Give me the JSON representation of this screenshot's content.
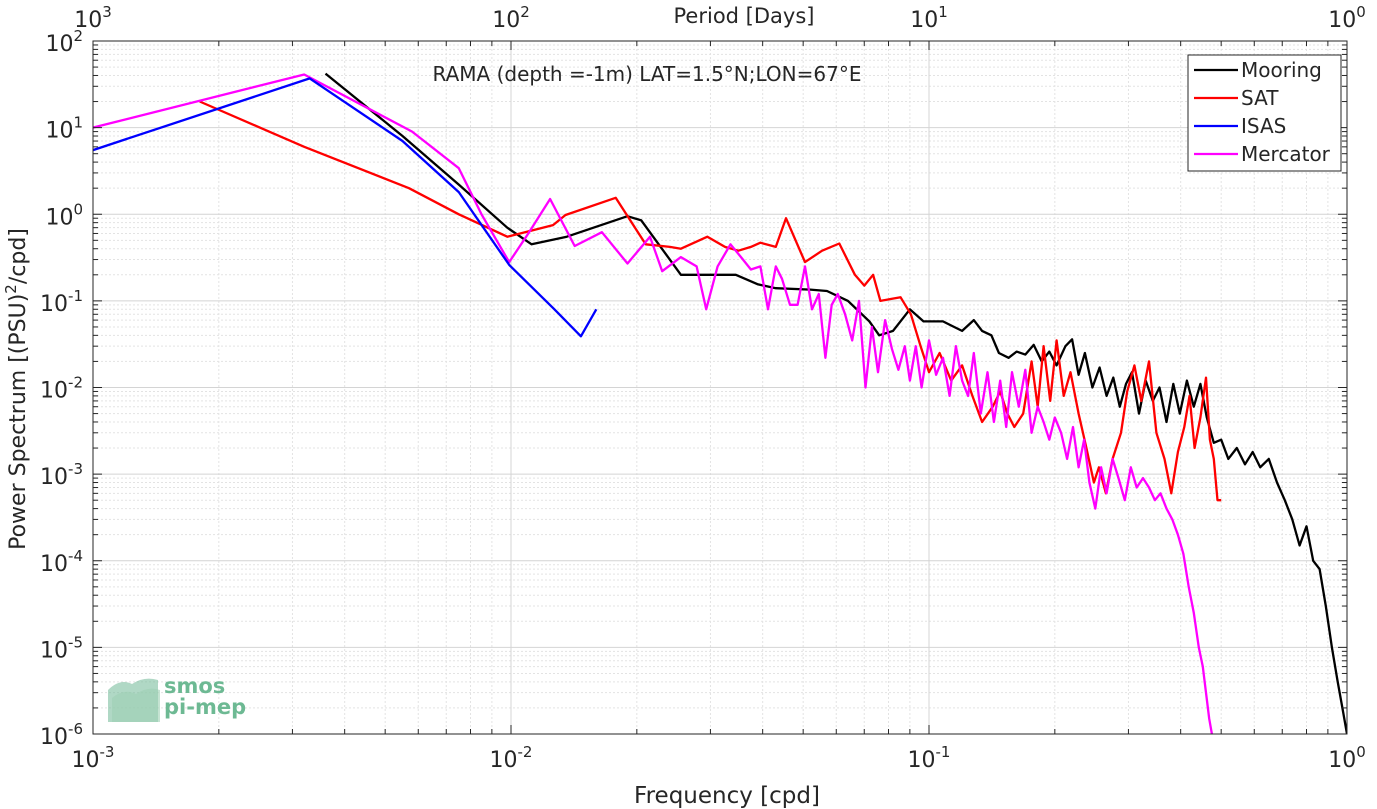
{
  "chart_data": {
    "type": "line",
    "title": "RAMA (depth =-1m) LAT=1.5°N;LON=67°E",
    "xlabel": "Frequency [cpd]",
    "ylabel": "Power Spectrum [(PSU)",
    "ylabel_sup": "2",
    "ylabel_tail": "/cpd]",
    "top_xlabel": "Period [Days]",
    "x_scale": "log",
    "y_scale": "log",
    "xlim": [
      0.001,
      1
    ],
    "ylim": [
      1e-06,
      100
    ],
    "grid": true,
    "legend_position": "top-right",
    "x_ticks": [
      {
        "value": 0.001,
        "base": "10",
        "exp": "-3"
      },
      {
        "value": 0.01,
        "base": "10",
        "exp": "-2"
      },
      {
        "value": 0.1,
        "base": "10",
        "exp": "-1"
      },
      {
        "value": 1,
        "base": "10",
        "exp": "0"
      }
    ],
    "top_ticks": [
      {
        "value": 0.001,
        "base": "10",
        "exp": "3"
      },
      {
        "value": 0.01,
        "base": "10",
        "exp": "2"
      },
      {
        "value": 0.1,
        "base": "10",
        "exp": "1"
      },
      {
        "value": 1,
        "base": "10",
        "exp": "0"
      }
    ],
    "y_ticks": [
      {
        "value": 100,
        "base": "10",
        "exp": "2"
      },
      {
        "value": 10,
        "base": "10",
        "exp": "1"
      },
      {
        "value": 1,
        "base": "10",
        "exp": "0"
      },
      {
        "value": 0.1,
        "base": "10",
        "exp": "-1"
      },
      {
        "value": 0.01,
        "base": "10",
        "exp": "-2"
      },
      {
        "value": 0.001,
        "base": "10",
        "exp": "-3"
      },
      {
        "value": 0.0001,
        "base": "10",
        "exp": "-4"
      },
      {
        "value": 1e-05,
        "base": "10",
        "exp": "-5"
      },
      {
        "value": 1e-06,
        "base": "10",
        "exp": "-6"
      }
    ],
    "series": [
      {
        "name": "Mooring",
        "color": "#000000",
        "points": [
          [
            0.0036,
            42
          ],
          [
            0.0055,
            8
          ],
          [
            0.0075,
            2.2
          ],
          [
            0.0098,
            0.7
          ],
          [
            0.0112,
            0.45
          ],
          [
            0.0136,
            0.55
          ],
          [
            0.019,
            0.95
          ],
          [
            0.0205,
            0.85
          ],
          [
            0.0255,
            0.2
          ],
          [
            0.0345,
            0.2
          ],
          [
            0.039,
            0.155
          ],
          [
            0.043,
            0.14
          ],
          [
            0.052,
            0.135
          ],
          [
            0.057,
            0.13
          ],
          [
            0.064,
            0.1
          ],
          [
            0.072,
            0.058
          ],
          [
            0.076,
            0.04
          ],
          [
            0.082,
            0.045
          ],
          [
            0.09,
            0.08
          ],
          [
            0.097,
            0.058
          ],
          [
            0.108,
            0.058
          ],
          [
            0.113,
            0.052
          ],
          [
            0.12,
            0.045
          ],
          [
            0.128,
            0.06
          ],
          [
            0.134,
            0.045
          ],
          [
            0.141,
            0.04
          ],
          [
            0.147,
            0.025
          ],
          [
            0.155,
            0.022
          ],
          [
            0.162,
            0.026
          ],
          [
            0.17,
            0.024
          ],
          [
            0.178,
            0.031
          ],
          [
            0.186,
            0.02
          ],
          [
            0.194,
            0.026
          ],
          [
            0.202,
            0.018
          ],
          [
            0.212,
            0.03
          ],
          [
            0.22,
            0.036
          ],
          [
            0.228,
            0.014
          ],
          [
            0.236,
            0.025
          ],
          [
            0.246,
            0.01
          ],
          [
            0.256,
            0.017
          ],
          [
            0.266,
            0.008
          ],
          [
            0.276,
            0.013
          ],
          [
            0.286,
            0.006
          ],
          [
            0.296,
            0.011
          ],
          [
            0.306,
            0.015
          ],
          [
            0.318,
            0.005
          ],
          [
            0.33,
            0.012
          ],
          [
            0.343,
            0.007
          ],
          [
            0.356,
            0.01
          ],
          [
            0.37,
            0.004
          ],
          [
            0.384,
            0.011
          ],
          [
            0.398,
            0.005
          ],
          [
            0.414,
            0.012
          ],
          [
            0.43,
            0.006
          ],
          [
            0.446,
            0.011
          ],
          [
            0.462,
            0.0045
          ],
          [
            0.48,
            0.0023
          ],
          [
            0.5,
            0.0025
          ],
          [
            0.52,
            0.0015
          ],
          [
            0.545,
            0.002
          ],
          [
            0.57,
            0.0013
          ],
          [
            0.595,
            0.0018
          ],
          [
            0.62,
            0.0012
          ],
          [
            0.65,
            0.0015
          ],
          [
            0.68,
            0.0008
          ],
          [
            0.71,
            0.0005
          ],
          [
            0.74,
            0.0003
          ],
          [
            0.77,
            0.00015
          ],
          [
            0.8,
            0.00025
          ],
          [
            0.83,
            0.0001
          ],
          [
            0.86,
            8e-05
          ],
          [
            0.89,
            3e-05
          ],
          [
            0.92,
            1e-05
          ],
          [
            0.95,
            4e-06
          ],
          [
            0.975,
            2e-06
          ],
          [
            1.0,
            1e-06
          ]
        ]
      },
      {
        "name": "SAT",
        "color": "#ff0000",
        "points": [
          [
            0.0018,
            20
          ],
          [
            0.0032,
            6
          ],
          [
            0.0057,
            2
          ],
          [
            0.0075,
            1
          ],
          [
            0.0098,
            0.55
          ],
          [
            0.0126,
            0.75
          ],
          [
            0.0135,
            0.98
          ],
          [
            0.0178,
            1.55
          ],
          [
            0.021,
            0.45
          ],
          [
            0.024,
            0.42
          ],
          [
            0.0255,
            0.4
          ],
          [
            0.0295,
            0.55
          ],
          [
            0.0325,
            0.42
          ],
          [
            0.035,
            0.38
          ],
          [
            0.0375,
            0.42
          ],
          [
            0.0395,
            0.47
          ],
          [
            0.043,
            0.42
          ],
          [
            0.0455,
            0.9
          ],
          [
            0.0505,
            0.28
          ],
          [
            0.0555,
            0.38
          ],
          [
            0.061,
            0.46
          ],
          [
            0.0665,
            0.2
          ],
          [
            0.07,
            0.15
          ],
          [
            0.0735,
            0.2
          ],
          [
            0.0765,
            0.1
          ],
          [
            0.081,
            0.105
          ],
          [
            0.0855,
            0.11
          ],
          [
            0.0905,
            0.07
          ],
          [
            0.0955,
            0.03
          ],
          [
            0.1,
            0.015
          ],
          [
            0.106,
            0.025
          ],
          [
            0.113,
            0.012
          ],
          [
            0.12,
            0.018
          ],
          [
            0.127,
            0.008
          ],
          [
            0.134,
            0.004
          ],
          [
            0.142,
            0.006
          ],
          [
            0.148,
            0.009
          ],
          [
            0.154,
            0.005
          ],
          [
            0.16,
            0.0035
          ],
          [
            0.168,
            0.005
          ],
          [
            0.176,
            0.02
          ],
          [
            0.182,
            0.006
          ],
          [
            0.188,
            0.03
          ],
          [
            0.195,
            0.007
          ],
          [
            0.202,
            0.035
          ],
          [
            0.21,
            0.008
          ],
          [
            0.218,
            0.015
          ],
          [
            0.228,
            0.005
          ],
          [
            0.238,
            0.002
          ],
          [
            0.248,
            0.0008
          ],
          [
            0.255,
            0.0012
          ],
          [
            0.265,
            0.0006
          ],
          [
            0.275,
            0.0015
          ],
          [
            0.288,
            0.003
          ],
          [
            0.298,
            0.009
          ],
          [
            0.31,
            0.018
          ],
          [
            0.322,
            0.007
          ],
          [
            0.336,
            0.02
          ],
          [
            0.35,
            0.003
          ],
          [
            0.366,
            0.0015
          ],
          [
            0.38,
            0.0006
          ],
          [
            0.394,
            0.0018
          ],
          [
            0.408,
            0.0035
          ],
          [
            0.42,
            0.008
          ],
          [
            0.432,
            0.002
          ],
          [
            0.446,
            0.0045
          ],
          [
            0.46,
            0.013
          ],
          [
            0.47,
            0.0025
          ],
          [
            0.48,
            0.0015
          ],
          [
            0.49,
            0.0005
          ],
          [
            0.5,
            0.0005
          ]
        ]
      },
      {
        "name": "ISAS",
        "color": "#0000ff",
        "points": [
          [
            0.001,
            5.5
          ],
          [
            0.0033,
            37
          ],
          [
            0.0055,
            7
          ],
          [
            0.0075,
            1.8
          ],
          [
            0.0099,
            0.26
          ],
          [
            0.0127,
            0.08
          ],
          [
            0.0147,
            0.039
          ],
          [
            0.016,
            0.08
          ]
        ]
      },
      {
        "name": "Mercator",
        "color": "#ff00ff",
        "points": [
          [
            0.001,
            10
          ],
          [
            0.0032,
            41
          ],
          [
            0.0058,
            9
          ],
          [
            0.0075,
            3.4
          ],
          [
            0.0085,
            1
          ],
          [
            0.0099,
            0.28
          ],
          [
            0.011,
            0.6
          ],
          [
            0.0124,
            1.5
          ],
          [
            0.0142,
            0.43
          ],
          [
            0.0165,
            0.62
          ],
          [
            0.019,
            0.27
          ],
          [
            0.0215,
            0.55
          ],
          [
            0.023,
            0.22
          ],
          [
            0.0255,
            0.32
          ],
          [
            0.0278,
            0.25
          ],
          [
            0.0293,
            0.08
          ],
          [
            0.0312,
            0.25
          ],
          [
            0.0335,
            0.45
          ],
          [
            0.0355,
            0.32
          ],
          [
            0.0375,
            0.23
          ],
          [
            0.0395,
            0.25
          ],
          [
            0.0412,
            0.08
          ],
          [
            0.043,
            0.25
          ],
          [
            0.0445,
            0.18
          ],
          [
            0.0465,
            0.09
          ],
          [
            0.0485,
            0.09
          ],
          [
            0.0505,
            0.25
          ],
          [
            0.0525,
            0.08
          ],
          [
            0.0545,
            0.12
          ],
          [
            0.0565,
            0.022
          ],
          [
            0.0585,
            0.09
          ],
          [
            0.0605,
            0.12
          ],
          [
            0.063,
            0.07
          ],
          [
            0.0655,
            0.035
          ],
          [
            0.068,
            0.1
          ],
          [
            0.0705,
            0.01
          ],
          [
            0.073,
            0.05
          ],
          [
            0.0755,
            0.015
          ],
          [
            0.0785,
            0.06
          ],
          [
            0.0815,
            0.028
          ],
          [
            0.0845,
            0.016
          ],
          [
            0.0875,
            0.03
          ],
          [
            0.09,
            0.012
          ],
          [
            0.093,
            0.03
          ],
          [
            0.096,
            0.01
          ],
          [
            0.1,
            0.035
          ],
          [
            0.104,
            0.014
          ],
          [
            0.108,
            0.022
          ],
          [
            0.112,
            0.008
          ],
          [
            0.116,
            0.03
          ],
          [
            0.12,
            0.012
          ],
          [
            0.124,
            0.008
          ],
          [
            0.128,
            0.025
          ],
          [
            0.133,
            0.005
          ],
          [
            0.138,
            0.015
          ],
          [
            0.143,
            0.004
          ],
          [
            0.148,
            0.012
          ],
          [
            0.153,
            0.0035
          ],
          [
            0.158,
            0.015
          ],
          [
            0.164,
            0.006
          ],
          [
            0.17,
            0.016
          ],
          [
            0.176,
            0.003
          ],
          [
            0.182,
            0.006
          ],
          [
            0.188,
            0.004
          ],
          [
            0.194,
            0.0025
          ],
          [
            0.2,
            0.0045
          ],
          [
            0.207,
            0.003
          ],
          [
            0.214,
            0.0015
          ],
          [
            0.221,
            0.0035
          ],
          [
            0.228,
            0.0012
          ],
          [
            0.235,
            0.0025
          ],
          [
            0.242,
            0.0008
          ],
          [
            0.25,
            0.0004
          ],
          [
            0.258,
            0.0012
          ],
          [
            0.266,
            0.0006
          ],
          [
            0.275,
            0.0015
          ],
          [
            0.284,
            0.0009
          ],
          [
            0.294,
            0.0005
          ],
          [
            0.304,
            0.0012
          ],
          [
            0.314,
            0.0007
          ],
          [
            0.325,
            0.0009
          ],
          [
            0.336,
            0.0007
          ],
          [
            0.347,
            0.0005
          ],
          [
            0.358,
            0.0006
          ],
          [
            0.37,
            0.0004
          ],
          [
            0.382,
            0.0003
          ],
          [
            0.394,
            0.0002
          ],
          [
            0.406,
            0.00012
          ],
          [
            0.418,
            5e-05
          ],
          [
            0.43,
            2.5e-05
          ],
          [
            0.442,
            1e-05
          ],
          [
            0.452,
            6e-06
          ],
          [
            0.46,
            3e-06
          ],
          [
            0.468,
            1.5e-06
          ],
          [
            0.475,
            1e-06
          ]
        ]
      }
    ]
  },
  "logo": {
    "line1": "smos",
    "line2": "pi-mep"
  }
}
